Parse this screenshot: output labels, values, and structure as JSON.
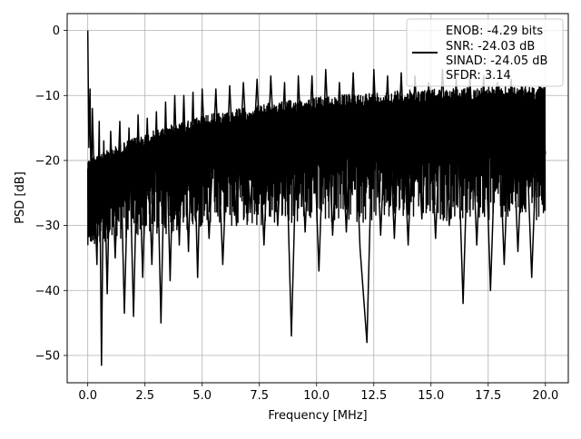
{
  "chart_data": {
    "type": "line",
    "title": "",
    "xlabel": "Frequency [MHz]",
    "ylabel": "PSD [dB]",
    "xlim": [
      -0.9,
      21.0
    ],
    "ylim": [
      -54.2,
      2.6
    ],
    "x_ticks": [
      0.0,
      2.5,
      5.0,
      7.5,
      10.0,
      12.5,
      15.0,
      17.5,
      20.0
    ],
    "x_tick_labels": [
      "0.0",
      "2.5",
      "5.0",
      "7.5",
      "10.0",
      "12.5",
      "15.0",
      "17.5",
      "20.0"
    ],
    "y_ticks": [
      0,
      -10,
      -20,
      -30,
      -40,
      -50
    ],
    "y_tick_labels": [
      "0",
      "−10",
      "−20",
      "−30",
      "−40",
      "−50"
    ],
    "grid": true,
    "legend_position": "top-right",
    "legend_entries": [
      "ENOB: -4.29 bits",
      "SNR: -24.03 dB",
      "SINAD: -24.05 dB",
      "SFDR: 3.14"
    ],
    "series": [
      {
        "color": "#000000",
        "x": [
          0.0,
          0.05,
          0.1,
          0.15,
          0.2,
          0.3,
          0.4,
          0.5,
          0.6,
          0.7,
          0.85,
          1.0,
          1.2,
          1.4,
          1.6,
          1.8,
          2.0,
          2.2,
          2.4,
          2.6,
          2.8,
          3.0,
          3.2,
          3.4,
          3.6,
          3.8,
          4.0,
          4.2,
          4.4,
          4.6,
          4.8,
          5.0,
          5.3,
          5.6,
          5.9,
          6.2,
          6.5,
          6.8,
          7.1,
          7.4,
          7.7,
          8.0,
          8.3,
          8.6,
          8.9,
          9.2,
          9.5,
          9.8,
          10.1,
          10.4,
          10.7,
          11.0,
          11.3,
          11.6,
          11.9,
          12.2,
          12.5,
          12.8,
          13.1,
          13.4,
          13.7,
          14.0,
          14.3,
          14.6,
          14.9,
          15.2,
          15.5,
          15.8,
          16.1,
          16.4,
          16.7,
          17.0,
          17.3,
          17.6,
          17.9,
          18.2,
          18.5,
          18.8,
          19.1,
          19.4,
          19.7,
          20.0
        ],
        "y": [
          0.0,
          -18.0,
          -9.0,
          -28.0,
          -12.0,
          -25.0,
          -36.0,
          -14.0,
          -51.5,
          -17.0,
          -40.5,
          -15.5,
          -35.0,
          -14.0,
          -43.5,
          -15.0,
          -44.0,
          -13.0,
          -38.0,
          -13.5,
          -36.0,
          -12.5,
          -45.0,
          -11.0,
          -38.5,
          -10.0,
          -33.0,
          -10.0,
          -34.0,
          -9.5,
          -38.0,
          -9.0,
          -32.0,
          -9.0,
          -36.0,
          -8.5,
          -30.0,
          -8.0,
          -28.0,
          -7.5,
          -33.0,
          -7.0,
          -30.0,
          -8.0,
          -47.0,
          -7.0,
          -31.0,
          -7.0,
          -37.0,
          -6.0,
          -31.5,
          -8.0,
          -31.0,
          -6.5,
          -33.5,
          -48.0,
          -6.0,
          -31.5,
          -7.0,
          -32.0,
          -6.5,
          -33.0,
          -7.0,
          -29.0,
          -8.0,
          -32.0,
          -6.0,
          -30.0,
          -7.5,
          -42.0,
          -6.5,
          -33.0,
          -7.0,
          -40.0,
          -8.0,
          -36.0,
          -7.5,
          -34.0,
          -9.0,
          -38.0,
          -9.5,
          -19.0
        ]
      }
    ]
  }
}
